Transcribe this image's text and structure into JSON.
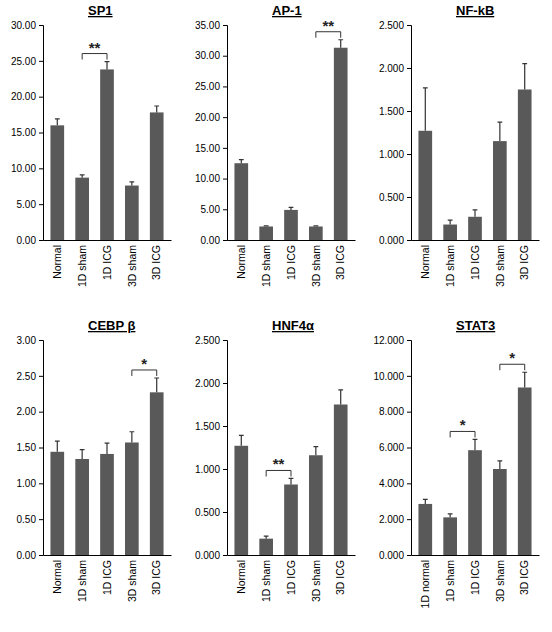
{
  "chart_data": [
    {
      "type": "bar",
      "title": "SP1",
      "color": "#595959",
      "categories": [
        "Normal",
        "1D sham",
        "1D ICG",
        "3D sham",
        "3D ICG"
      ],
      "values": [
        16.0,
        8.7,
        23.8,
        7.6,
        17.8
      ],
      "errors": [
        0.9,
        0.4,
        1.1,
        0.5,
        0.9
      ],
      "ylim": [
        0,
        30
      ],
      "yticks": [
        {
          "value": 0,
          "label": "0.00"
        },
        {
          "value": 5,
          "label": "5.00"
        },
        {
          "value": 10,
          "label": "10.00"
        },
        {
          "value": 15,
          "label": "15.00"
        },
        {
          "value": 20,
          "label": "20.00"
        },
        {
          "value": 25,
          "label": "25.00"
        },
        {
          "value": 30,
          "label": "30.00"
        }
      ],
      "annotations": [
        {
          "text": "**",
          "between": [
            "1D sham",
            "1D ICG"
          ]
        }
      ]
    },
    {
      "type": "bar",
      "title": "AP-1",
      "color": "#595959",
      "categories": [
        "Normal",
        "1D sham",
        "1D ICG",
        "3D sham",
        "3D ICG"
      ],
      "values": [
        12.5,
        2.2,
        4.9,
        2.2,
        31.3
      ],
      "errors": [
        0.6,
        0.1,
        0.4,
        0.1,
        1.3
      ],
      "ylim": [
        0,
        35
      ],
      "yticks": [
        {
          "value": 0,
          "label": "0.00"
        },
        {
          "value": 5,
          "label": "5.00"
        },
        {
          "value": 10,
          "label": "10.00"
        },
        {
          "value": 15,
          "label": "15.00"
        },
        {
          "value": 20,
          "label": "20.00"
        },
        {
          "value": 25,
          "label": "25.00"
        },
        {
          "value": 30,
          "label": "30.00"
        },
        {
          "value": 35,
          "label": "35.00"
        }
      ],
      "annotations": [
        {
          "text": "**",
          "between": [
            "3D sham",
            "3D ICG"
          ]
        }
      ]
    },
    {
      "type": "bar",
      "title": "NF-kB",
      "color": "#595959",
      "categories": [
        "Normal",
        "1D sham",
        "1D ICG",
        "3D sham",
        "3D ICG"
      ],
      "values": [
        1.27,
        0.18,
        0.27,
        1.15,
        1.75
      ],
      "errors": [
        0.5,
        0.05,
        0.08,
        0.22,
        0.3
      ],
      "ylim": [
        0,
        2.5
      ],
      "yticks": [
        {
          "value": 0,
          "label": "0.000"
        },
        {
          "value": 0.5,
          "label": "0.500"
        },
        {
          "value": 1,
          "label": "1.000"
        },
        {
          "value": 1.5,
          "label": "1.500"
        },
        {
          "value": 2,
          "label": "2.000"
        },
        {
          "value": 2.5,
          "label": "2.500"
        }
      ]
    },
    {
      "type": "bar",
      "title": "CEBP β",
      "color": "#595959",
      "categories": [
        "Normal",
        "1D sham",
        "1D ICG",
        "3D sham",
        "3D ICG"
      ],
      "values": [
        1.44,
        1.34,
        1.41,
        1.57,
        2.27
      ],
      "errors": [
        0.15,
        0.13,
        0.15,
        0.15,
        0.2
      ],
      "ylim": [
        0,
        3
      ],
      "yticks": [
        {
          "value": 0,
          "label": "0.00"
        },
        {
          "value": 0.5,
          "label": "0.50"
        },
        {
          "value": 1,
          "label": "1.00"
        },
        {
          "value": 1.5,
          "label": "1.50"
        },
        {
          "value": 2,
          "label": "2.00"
        },
        {
          "value": 2.5,
          "label": "2.50"
        },
        {
          "value": 3,
          "label": "3.00"
        }
      ],
      "annotations": [
        {
          "text": "*",
          "between": [
            "3D sham",
            "3D ICG"
          ]
        }
      ]
    },
    {
      "type": "bar",
      "title": "HNF4α",
      "color": "#595959",
      "categories": [
        "Normal",
        "1D sham",
        "1D ICG",
        "3D sham",
        "3D ICG"
      ],
      "values": [
        1.27,
        0.19,
        0.82,
        1.16,
        1.75
      ],
      "errors": [
        0.12,
        0.03,
        0.07,
        0.1,
        0.17
      ],
      "ylim": [
        0,
        2.5
      ],
      "yticks": [
        {
          "value": 0,
          "label": "0.000"
        },
        {
          "value": 0.5,
          "label": "0.500"
        },
        {
          "value": 1,
          "label": "1.000"
        },
        {
          "value": 1.5,
          "label": "1.500"
        },
        {
          "value": 2,
          "label": "2.000"
        },
        {
          "value": 2.5,
          "label": "2.500"
        }
      ],
      "annotations": [
        {
          "text": "**",
          "between": [
            "1D sham",
            "1D ICG"
          ]
        }
      ]
    },
    {
      "type": "bar",
      "title": "STAT3",
      "color": "#595959",
      "categories": [
        "1D normal",
        "1D sham",
        "1D ICG",
        "3D sham",
        "3D ICG"
      ],
      "values": [
        2.85,
        2.1,
        5.85,
        4.8,
        9.35
      ],
      "errors": [
        0.25,
        0.2,
        0.6,
        0.45,
        0.85
      ],
      "ylim": [
        0,
        12
      ],
      "yticks": [
        {
          "value": 0,
          "label": "0.000"
        },
        {
          "value": 2,
          "label": "2.000"
        },
        {
          "value": 4,
          "label": "4.000"
        },
        {
          "value": 6,
          "label": "6.000"
        },
        {
          "value": 8,
          "label": "8.000"
        },
        {
          "value": 10,
          "label": "10.000"
        },
        {
          "value": 12,
          "label": "12.000"
        }
      ],
      "annotations": [
        {
          "text": "*",
          "between": [
            "1D sham",
            "1D ICG"
          ]
        },
        {
          "text": "*",
          "between": [
            "3D sham",
            "3D ICG"
          ]
        }
      ]
    }
  ]
}
